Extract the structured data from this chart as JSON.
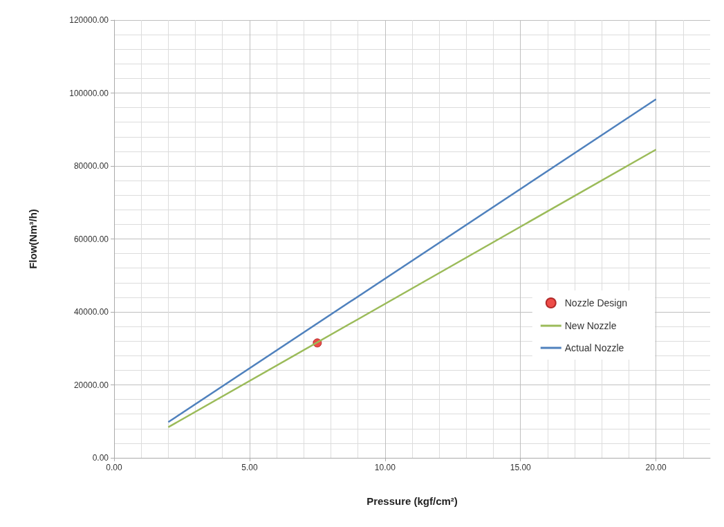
{
  "chart_data": {
    "type": "line",
    "xlabel": "Pressure (kgf/cm²)",
    "ylabel": "Flow(Nm³/h)",
    "xlim": [
      0,
      22
    ],
    "xticks": [
      {
        "value": 0,
        "label": "0.00"
      },
      {
        "value": 5,
        "label": "5.00"
      },
      {
        "value": 10,
        "label": "10.00"
      },
      {
        "value": 15,
        "label": "15.00"
      },
      {
        "value": 20,
        "label": "20.00"
      }
    ],
    "ylim": [
      0,
      120000
    ],
    "yticks": [
      {
        "value": 0,
        "label": "0.00"
      },
      {
        "value": 20000,
        "label": "20000.00"
      },
      {
        "value": 40000,
        "label": "40000.00"
      },
      {
        "value": 60000,
        "label": "60000.00"
      },
      {
        "value": 80000,
        "label": "80000.00"
      },
      {
        "value": 100000,
        "label": "100000.00"
      },
      {
        "value": 120000,
        "label": "120000.00"
      }
    ],
    "grid": true,
    "legend": "right",
    "series": [
      {
        "name": "Nozzle Design",
        "type": "scatter",
        "color": "#e8211b",
        "marker": "circle",
        "x": [
          7.5
        ],
        "values": [
          31500
        ]
      },
      {
        "name": "New Nozzle",
        "color": "#9bbb59",
        "marker": "none",
        "x": [
          2,
          20
        ],
        "values": [
          8400,
          84500
        ]
      },
      {
        "name": "Actual Nozzle",
        "color": "#4f81bd",
        "marker": "none",
        "x": [
          2,
          20
        ],
        "values": [
          9800,
          98300
        ]
      }
    ]
  }
}
